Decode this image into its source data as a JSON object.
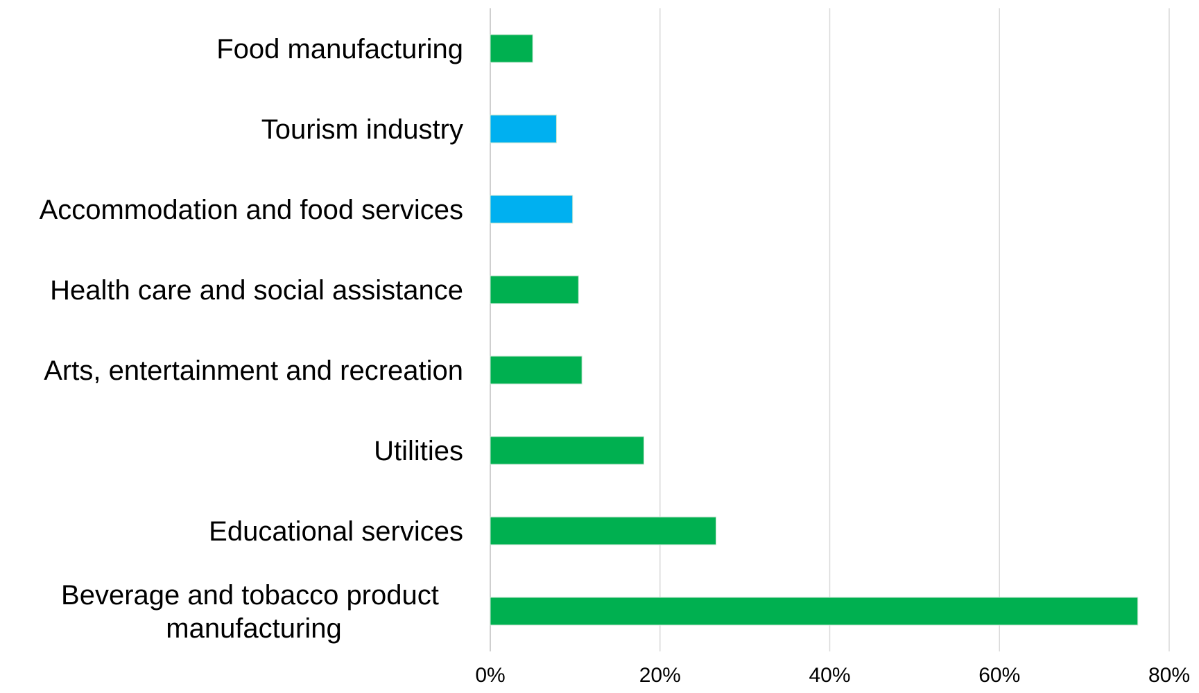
{
  "chart_data": {
    "type": "bar",
    "orientation": "horizontal",
    "title": "",
    "xlabel": "",
    "ylabel": "",
    "xlim": [
      0,
      80
    ],
    "x_ticks": [
      0,
      20,
      40,
      60,
      80
    ],
    "x_tick_labels": [
      "0%",
      "20%",
      "40%",
      "60%",
      "80%"
    ],
    "grid": "vertical",
    "legend": "none",
    "categories": [
      "Food manufacturing",
      "Tourism industry",
      "Accommodation and food services",
      "Health care and social assistance",
      "Arts, entertainment and recreation",
      "Utilities",
      "Educational services",
      "Beverage and tobacco product manufacturing"
    ],
    "category_label_lines": [
      [
        "Food manufacturing"
      ],
      [
        "Tourism industry"
      ],
      [
        "Accommodation and food services"
      ],
      [
        "Health care and social assistance"
      ],
      [
        "Arts, entertainment and recreation"
      ],
      [
        "Utilities"
      ],
      [
        "Educational services"
      ],
      [
        "Beverage and tobacco product ",
        "manufacturing"
      ]
    ],
    "values": [
      5,
      7.8,
      9.7,
      10.4,
      10.8,
      18.1,
      26.6,
      76.3
    ],
    "bar_colors": [
      "#00B050",
      "#00B0F0",
      "#00B0F0",
      "#00B050",
      "#00B050",
      "#00B050",
      "#00B050",
      "#00B050"
    ],
    "colors": {
      "green": "#00B050",
      "blue": "#00B0F0",
      "grid": "#d9d9d9"
    }
  }
}
